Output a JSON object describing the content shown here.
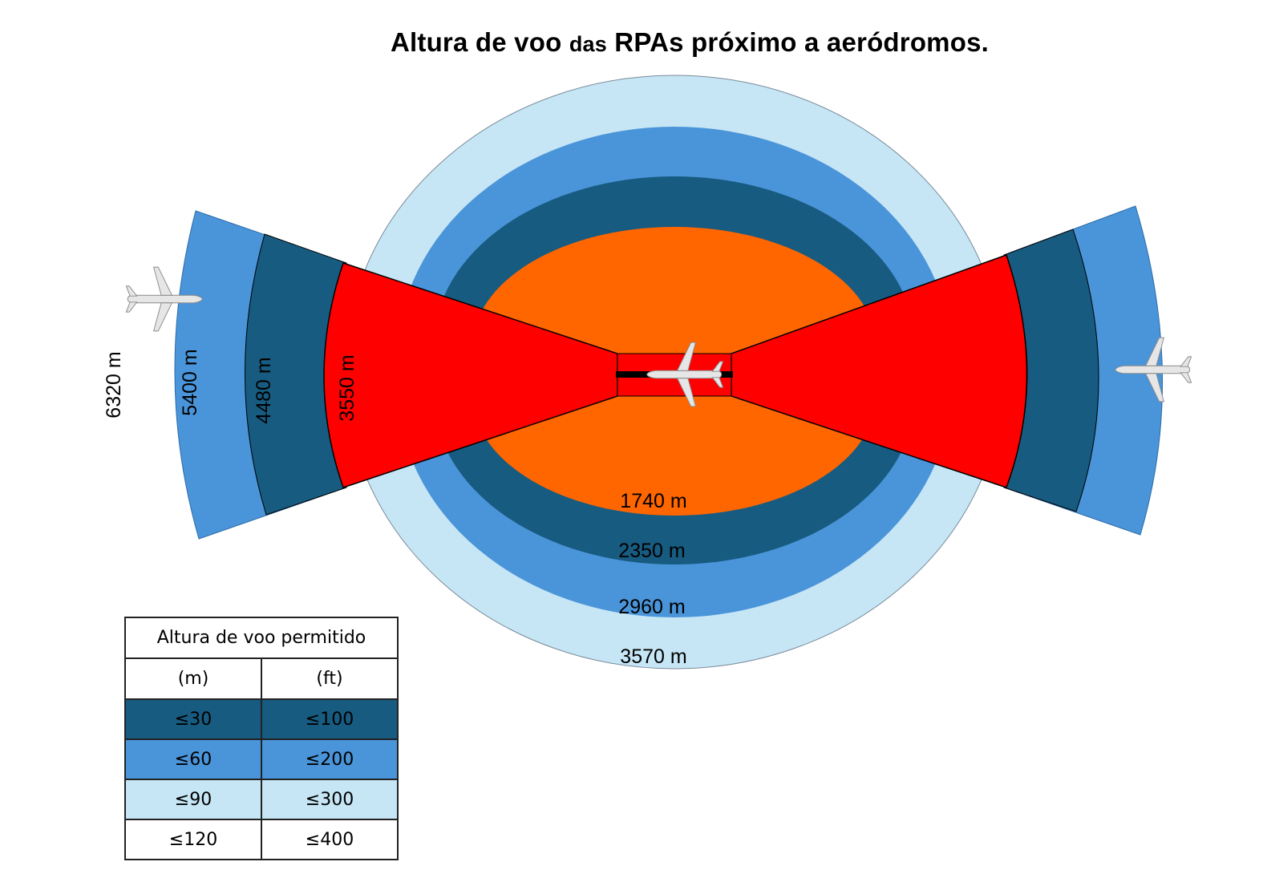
{
  "title": {
    "part1": "Altura de voo ",
    "part2": "das",
    "part3": " RPAs próximo a aeródromos."
  },
  "colors": {
    "light_blue": "#c6e6f5",
    "mid_blue": "#4a94d9",
    "dark_blue": "#175b80",
    "orange": "#ff6600",
    "red": "#ff0000",
    "runway": "#000000"
  },
  "zones": {
    "circle_labels": [
      "1740 m",
      "2350 m",
      "2960 m",
      "3570 m"
    ],
    "approach_labels": [
      "3550 m",
      "4480 m",
      "5400 m",
      "6320 m"
    ]
  },
  "legend": {
    "header": "Altura de voo permitido",
    "unit_m": "(m)",
    "unit_ft": "(ft)",
    "rows": [
      {
        "m": "≤30",
        "ft": "≤100"
      },
      {
        "m": "≤60",
        "ft": "≤200"
      },
      {
        "m": "≤90",
        "ft": "≤300"
      },
      {
        "m": "≤120",
        "ft": "≤400"
      }
    ]
  },
  "icons": [
    "airplane-icon-runway",
    "airplane-icon-left",
    "airplane-icon-right"
  ]
}
